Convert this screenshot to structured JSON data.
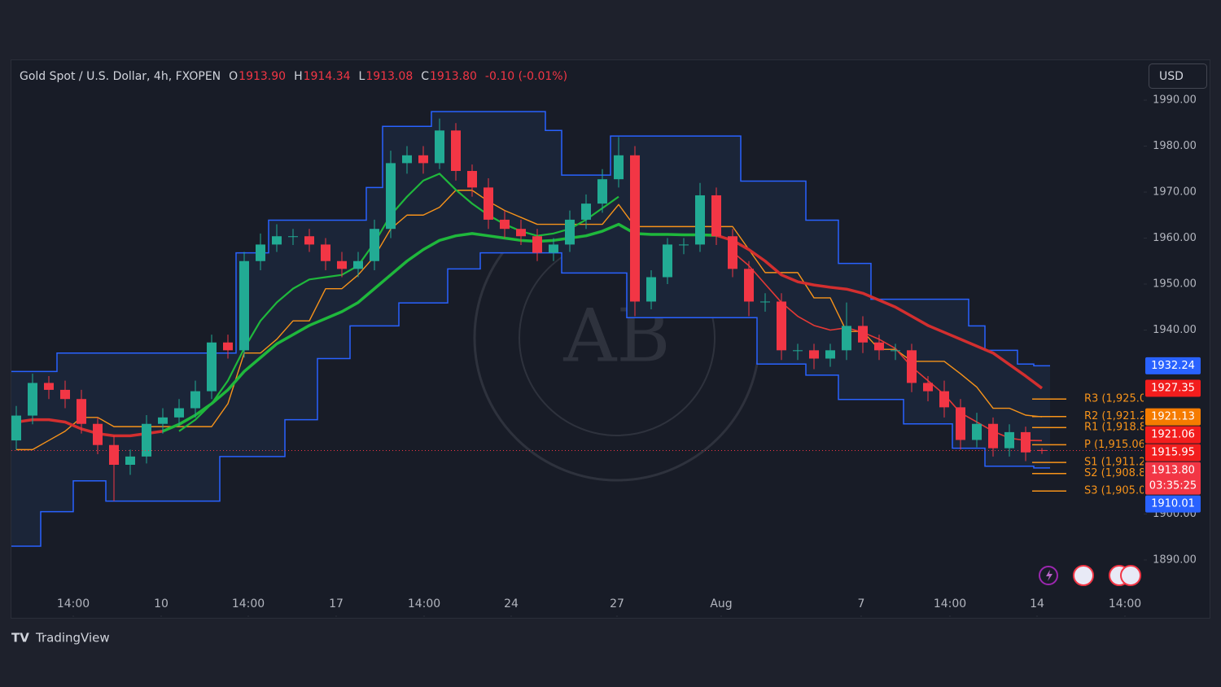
{
  "chart_data": {
    "type": "candlestick",
    "title": "Gold Spot / U.S. Dollar, 4h, FXOPEN",
    "ohlc": {
      "labels": [
        "O",
        "H",
        "L",
        "C"
      ],
      "values": [
        1913.9,
        1914.34,
        1913.08,
        1913.8
      ],
      "value_labels": [
        "1913.90",
        "1914.34",
        "1913.08",
        "1913.80"
      ]
    },
    "change": "-0.10 (-0.01%)",
    "currency": "USD",
    "open": [
      1916,
      1921.4,
      1928.5,
      1927,
      1925,
      1919.6,
      1915,
      1910.7,
      1912.5,
      1919.6,
      1921,
      1923,
      1926.7,
      1937.3,
      1935.6,
      1955,
      1958.6,
      1960.4,
      1960.4,
      1958.6,
      1955,
      1953.3,
      1955,
      1962,
      1976.3,
      1978,
      1976.3,
      1983.4,
      1974.6,
      1971,
      1964,
      1962,
      1960.4,
      1956.8,
      1958.6,
      1964,
      1967.5,
      1972.8,
      1978,
      1946.2,
      1951.5,
      1958.6,
      1958.6,
      1969.3,
      1960.4,
      1953.3,
      1946.2,
      1946.2,
      1935.6,
      1935.6,
      1933.8,
      1935.6,
      1940.9,
      1937.3,
      1935.6,
      1935.6,
      1928.5,
      1926.7,
      1923.2,
      1916.1,
      1919.6,
      1914.3,
      1917.8,
      1913.9
    ],
    "high": [
      1923.5,
      1930.5,
      1930,
      1929,
      1927,
      1921,
      1917,
      1914,
      1921.5,
      1923,
      1925,
      1929,
      1939,
      1939,
      1957,
      1961,
      1963,
      1962,
      1962,
      1960,
      1957,
      1957,
      1964,
      1979,
      1980,
      1980,
      1986,
      1985,
      1976,
      1973,
      1966,
      1964,
      1962,
      1960,
      1966,
      1969.5,
      1975,
      1982,
      1980,
      1953,
      1960,
      1960,
      1972,
      1971,
      1962,
      1955,
      1948,
      1948,
      1937,
      1937,
      1937,
      1946,
      1943,
      1939,
      1937,
      1937,
      1930,
      1929,
      1925,
      1922,
      1921,
      1919.5,
      1919,
      1914.34
    ],
    "low": [
      1914,
      1919.5,
      1925,
      1923,
      1917.5,
      1913,
      1902.8,
      1908.5,
      1911,
      1917.5,
      1919,
      1921,
      1925,
      1933.8,
      1934,
      1953,
      1957,
      1958.5,
      1957,
      1953,
      1951.5,
      1951.5,
      1953,
      1960,
      1974,
      1974,
      1975,
      1972.5,
      1969,
      1962,
      1960,
      1958.5,
      1955,
      1955,
      1957,
      1962,
      1965.5,
      1971,
      1943,
      1944.5,
      1950,
      1956.5,
      1957,
      1958.5,
      1951.5,
      1943,
      1944,
      1933.5,
      1933.5,
      1931.5,
      1932,
      1933.5,
      1935,
      1933.5,
      1933.5,
      1926.5,
      1924.5,
      1921,
      1914,
      1914.5,
      1912.5,
      1912.5,
      1911.5,
      1913.08
    ],
    "close": [
      1921.4,
      1928.5,
      1927,
      1925,
      1919.6,
      1915,
      1910.7,
      1912.5,
      1919.6,
      1921,
      1923,
      1926.7,
      1937.3,
      1935.6,
      1955,
      1958.6,
      1960.4,
      1960.4,
      1958.6,
      1955,
      1953.3,
      1955,
      1962,
      1976.3,
      1978,
      1976.3,
      1983.4,
      1974.6,
      1971,
      1964,
      1962,
      1960.4,
      1956.8,
      1958.6,
      1964,
      1967.5,
      1972.8,
      1978,
      1946.2,
      1951.5,
      1958.6,
      1958.6,
      1969.3,
      1960.4,
      1953.3,
      1946.2,
      1946.2,
      1935.6,
      1935.6,
      1933.8,
      1935.6,
      1940.9,
      1937.3,
      1935.6,
      1935.6,
      1928.5,
      1926.7,
      1923.2,
      1916.1,
      1919.6,
      1914.3,
      1917.8,
      1913.4,
      1913.8
    ],
    "up_color": "#22ab94",
    "down_color": "#f23645",
    "channel": {
      "color": "#2962ff",
      "fill": "#1b2538",
      "upper": [
        1931,
        1931,
        1931,
        1935,
        1935,
        1935,
        1935,
        1935,
        1935,
        1935,
        1935,
        1935,
        1935,
        1935,
        1956.8,
        1956.8,
        1963.9,
        1963.9,
        1963.9,
        1963.9,
        1963.9,
        1963.9,
        1971,
        1984.3,
        1984.3,
        1984.3,
        1987.5,
        1987.5,
        1987.5,
        1987.5,
        1987.5,
        1987.5,
        1987.5,
        1983.4,
        1973.7,
        1973.7,
        1973.7,
        1982.2,
        1982.2,
        1982.2,
        1982.2,
        1982.2,
        1982.2,
        1982.2,
        1982.2,
        1972.4,
        1972.4,
        1972.4,
        1972.4,
        1963.9,
        1963.9,
        1954.5,
        1954.5,
        1946.7,
        1946.7,
        1946.7,
        1946.7,
        1946.7,
        1946.7,
        1940.9,
        1935.6,
        1935.6,
        1932.6,
        1932.24
      ],
      "lower": [
        1893,
        1893,
        1900.5,
        1900.5,
        1907.2,
        1907.2,
        1902.8,
        1902.8,
        1902.8,
        1902.8,
        1902.8,
        1902.8,
        1902.8,
        1912.5,
        1912.5,
        1912.5,
        1912.5,
        1920.5,
        1920.5,
        1933.8,
        1933.8,
        1940.9,
        1940.9,
        1940.9,
        1945.9,
        1945.9,
        1945.9,
        1953.3,
        1953.3,
        1956.8,
        1956.8,
        1956.8,
        1956.8,
        1956.8,
        1952.4,
        1952.4,
        1952.4,
        1952.4,
        1942.7,
        1942.7,
        1942.7,
        1942.7,
        1942.7,
        1942.7,
        1942.7,
        1942.7,
        1932.6,
        1932.6,
        1932.6,
        1930.2,
        1930.2,
        1924.9,
        1924.9,
        1924.9,
        1924.9,
        1919.6,
        1919.6,
        1919.6,
        1914.3,
        1914.3,
        1910.4,
        1910.4,
        1910.4,
        1910.01
      ]
    },
    "series": [
      {
        "color": "#f7931a",
        "width": 1.4,
        "values": [
          1914,
          1914,
          1916,
          1918,
          1921,
          1921,
          1919,
          1919,
          1919,
          1919,
          1919,
          1919,
          1919,
          1924,
          1935,
          1935,
          1938,
          1942,
          1942,
          1949,
          1949,
          1952,
          1956,
          1962,
          1965,
          1965,
          1966.7,
          1970.4,
          1970.4,
          1968,
          1966,
          1964.5,
          1963,
          1963,
          1963,
          1963,
          1963,
          1967.3,
          1962.5,
          1962.5,
          1962.5,
          1962.5,
          1962.5,
          1962.5,
          1962.5,
          1957.5,
          1952.5,
          1952.5,
          1952.5,
          1947,
          1947,
          1939.7,
          1939.7,
          1935.8,
          1935.8,
          1933.2,
          1933.2,
          1933.2,
          1930.5,
          1927.6,
          1923,
          1923,
          1921.5,
          1921.13
        ]
      },
      {
        "color": "#d32f2f",
        "width": 3.5,
        "values": [
          1920,
          1920.5,
          1920.5,
          1920,
          1918.5,
          1917.5,
          1917,
          1917,
          1917.5,
          1918,
          null,
          null,
          null,
          null,
          null,
          null,
          null,
          null,
          null,
          null,
          null,
          null,
          null,
          null,
          null,
          null,
          null,
          null,
          null,
          null,
          null,
          null,
          null,
          null,
          null,
          null,
          null,
          null,
          null,
          null,
          null,
          null,
          null,
          1960.6,
          1959.5,
          1957.5,
          1955,
          1952,
          1950.5,
          1949.8,
          1949.3,
          1948.9,
          1948,
          1946.5,
          1945,
          1943,
          1941,
          1939.5,
          1938,
          1936.5,
          1935,
          1932.5,
          1930,
          1927.35
        ]
      },
      {
        "color": "#1fb83c",
        "width": 3.5,
        "values": [
          null,
          null,
          null,
          null,
          null,
          null,
          null,
          null,
          null,
          1918,
          1919.5,
          1921.5,
          1924,
          1927,
          1931,
          1934,
          1937,
          1939,
          1941,
          1942.5,
          1944,
          1946,
          1949,
          1952,
          1955,
          1957.5,
          1959.5,
          1960.5,
          1961,
          1960.5,
          1960,
          1959.5,
          1959.3,
          1959.5,
          1960,
          1960.5,
          1961.5,
          1963,
          1961,
          1960.8,
          1960.8,
          1960.7,
          1960.7,
          1960.6,
          null,
          null,
          null,
          null,
          null,
          null,
          null,
          null,
          null,
          null,
          null,
          null,
          null,
          null,
          null,
          null,
          null,
          null,
          null,
          null
        ]
      },
      {
        "color": "#1fb83c",
        "width": 2.2,
        "values": [
          null,
          null,
          null,
          null,
          null,
          null,
          null,
          null,
          null,
          null,
          1918,
          1920.5,
          1924,
          1929,
          1936,
          1942,
          1946,
          1949,
          1951,
          1951.5,
          1952,
          1954,
          1959,
          1965,
          1969,
          1972.5,
          1974,
          1970.5,
          1967.5,
          1965,
          1963,
          1961.5,
          1960.5,
          1961,
          1962,
          1964,
          1966.5,
          1969,
          null,
          null,
          null,
          null,
          null,
          null,
          null,
          null,
          null,
          null,
          null,
          null,
          null,
          null,
          null,
          null,
          null,
          null,
          null,
          null,
          null,
          null,
          null,
          null,
          null,
          null
        ]
      },
      {
        "color": "#e53935",
        "width": 1.6,
        "values": [
          null,
          null,
          null,
          null,
          null,
          null,
          null,
          null,
          null,
          null,
          null,
          null,
          null,
          null,
          null,
          null,
          null,
          null,
          null,
          null,
          null,
          null,
          null,
          null,
          null,
          null,
          null,
          null,
          null,
          null,
          null,
          null,
          null,
          null,
          null,
          null,
          null,
          null,
          null,
          null,
          null,
          null,
          null,
          null,
          1957,
          1954,
          1950,
          1946,
          1943,
          1941,
          1940,
          1940.5,
          1939.5,
          1938,
          1936,
          1932,
          1929,
          1926,
          1922,
          1920,
          1918,
          1916.5,
          1916,
          1915.95
        ]
      }
    ],
    "pivots": {
      "color": "#f7931a",
      "labels": [
        "R3 (1,925.0",
        "R2 (1,921.2",
        "R1 (1,918.8",
        "P (1,915.06",
        "S1 (1,911.2",
        "S2 (1,908.8",
        "S3 (1,905.0"
      ],
      "values": [
        1925.0,
        1921.2,
        1918.8,
        1915.06,
        1911.2,
        1908.8,
        1905.0
      ]
    },
    "price_tags": {
      "values": [
        1932.24,
        1927.35,
        1921.13,
        1921.06,
        1915.95,
        1913.8,
        1910.01
      ],
      "value_labels": [
        "1932.24",
        "1927.35",
        "1921.13",
        "1921.06",
        "1915.95",
        "1913.80",
        "1910.01"
      ],
      "colors": [
        "#2962ff",
        "#f21d1d",
        "#f57c00",
        "#f21d1d",
        "#f21d1d",
        "#f23645",
        "#2962ff"
      ]
    },
    "countdown": "03:35:25",
    "xlim": [
      -0.3,
      69.25
    ],
    "xticks": [
      {
        "value": 3.5,
        "label": "14:00"
      },
      {
        "value": 8.9,
        "label": "10"
      },
      {
        "value": 14.25,
        "label": "14:00"
      },
      {
        "value": 19.65,
        "label": "17"
      },
      {
        "value": 25.05,
        "label": "14:00"
      },
      {
        "value": 30.4,
        "label": "24"
      },
      {
        "value": 36.9,
        "label": "27"
      },
      {
        "value": 43.3,
        "label": "Aug"
      },
      {
        "value": 51.9,
        "label": "7"
      },
      {
        "value": 57.35,
        "label": "14:00"
      },
      {
        "value": 62.7,
        "label": "14"
      },
      {
        "value": 68.1,
        "label": "14:00"
      }
    ],
    "ylim": [
      1877.6,
      1998.5
    ],
    "yticks": [
      {
        "value": 1890,
        "label": "1890.00"
      },
      {
        "value": 1900,
        "label": "1900.00"
      },
      {
        "value": 1940,
        "label": "1940.00"
      },
      {
        "value": 1950,
        "label": "1950.00"
      },
      {
        "value": 1960,
        "label": "1960.00"
      },
      {
        "value": 1970,
        "label": "1970.00"
      },
      {
        "value": 1980,
        "label": "1980.00"
      },
      {
        "value": 1990,
        "label": "1990.00"
      }
    ],
    "grid": false,
    "watermark": "AB",
    "brand": "TradingView"
  }
}
